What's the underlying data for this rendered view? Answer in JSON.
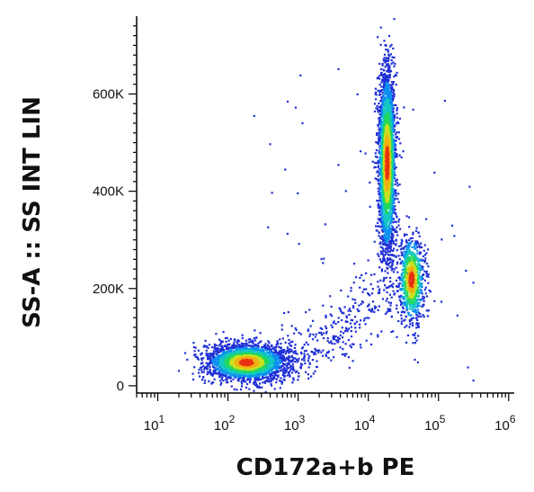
{
  "chart_data": {
    "type": "scatter",
    "subtype": "flow-cytometry-density-dot-plot",
    "xlabel": "CD172a+b PE",
    "ylabel": "SS-A :: SS INT LIN",
    "x_scale": "log",
    "y_scale": "linear",
    "xlim": [
      5,
      1200000
    ],
    "ylim": [
      -15000,
      760000
    ],
    "x_ticks": [
      {
        "value": 10,
        "base": "10",
        "exp": "1"
      },
      {
        "value": 100,
        "base": "10",
        "exp": "2"
      },
      {
        "value": 1000,
        "base": "10",
        "exp": "3"
      },
      {
        "value": 10000,
        "base": "10",
        "exp": "4"
      },
      {
        "value": 100000,
        "base": "10",
        "exp": "5"
      },
      {
        "value": 1000000,
        "base": "10",
        "exp": "6"
      }
    ],
    "y_ticks": [
      {
        "value": 0,
        "label": "0"
      },
      {
        "value": 200000,
        "label": "200K"
      },
      {
        "value": 400000,
        "label": "400K"
      },
      {
        "value": 600000,
        "label": "600K"
      }
    ],
    "density_colors": [
      "#1f2fd6",
      "#0a8ff0",
      "#12c8c0",
      "#22d85a",
      "#c8e020",
      "#f0b010",
      "#e83010"
    ],
    "clusters": [
      {
        "center_x": 180,
        "center_y": 50000,
        "spread_log10_x": 0.28,
        "spread_y": 18000,
        "count": 2600
      },
      {
        "center_x": 18000,
        "center_y": 460000,
        "spread_log10_x": 0.06,
        "spread_y": 95000,
        "count": 2800
      },
      {
        "center_x": 40000,
        "center_y": 220000,
        "spread_log10_x": 0.09,
        "spread_y": 45000,
        "count": 900
      }
    ]
  }
}
